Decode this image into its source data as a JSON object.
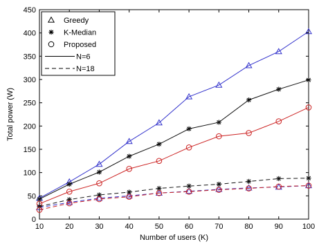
{
  "chart_data": {
    "type": "line",
    "xlabel": "Number of users (K)",
    "ylabel": "Total power (W)",
    "xlim": [
      10,
      100
    ],
    "ylim": [
      0,
      450
    ],
    "x_ticks": [
      10,
      20,
      30,
      40,
      50,
      60,
      70,
      80,
      90,
      100
    ],
    "y_ticks": [
      0,
      50,
      100,
      150,
      200,
      250,
      300,
      350,
      400,
      450
    ],
    "grid": false,
    "legend_position": "top-left",
    "x": [
      10,
      20,
      30,
      40,
      50,
      60,
      70,
      80,
      90,
      100
    ],
    "legend": [
      {
        "label": "Greedy",
        "marker": "triangle",
        "line": "none"
      },
      {
        "label": "K-Median",
        "marker": "star",
        "line": "none"
      },
      {
        "label": "Proposed",
        "marker": "circle",
        "line": "none"
      },
      {
        "label": "N=6",
        "marker": "none",
        "line": "solid"
      },
      {
        "label": "N=18",
        "marker": "none",
        "line": "dashed"
      }
    ],
    "series": [
      {
        "method": "Greedy",
        "N": 6,
        "color": "#3333cc",
        "marker": "triangle",
        "dash": "solid",
        "values": [
          45,
          80,
          118,
          167,
          207,
          263,
          288,
          330,
          360,
          403
        ]
      },
      {
        "method": "K-Median",
        "N": 6,
        "color": "#111111",
        "marker": "star",
        "dash": "solid",
        "values": [
          43,
          75,
          101,
          135,
          161,
          194,
          208,
          256,
          279,
          299
        ]
      },
      {
        "method": "Proposed",
        "N": 6,
        "color": "#cc2222",
        "marker": "circle",
        "dash": "solid",
        "values": [
          33,
          59,
          77,
          108,
          125,
          154,
          178,
          185,
          210,
          240
        ]
      },
      {
        "method": "Greedy",
        "N": 18,
        "color": "#3333cc",
        "marker": "triangle",
        "dash": "dashed",
        "values": [
          25,
          36,
          45,
          50,
          56,
          60,
          64,
          67,
          69,
          72
        ]
      },
      {
        "method": "K-Median",
        "N": 18,
        "color": "#111111",
        "marker": "star",
        "dash": "dashed",
        "values": [
          27,
          42,
          52,
          58,
          66,
          71,
          75,
          81,
          87,
          88
        ]
      },
      {
        "method": "Proposed",
        "N": 18,
        "color": "#cc2222",
        "marker": "circle",
        "dash": "dashed",
        "values": [
          20,
          34,
          43,
          48,
          56,
          59,
          63,
          66,
          70,
          72
        ]
      }
    ]
  }
}
